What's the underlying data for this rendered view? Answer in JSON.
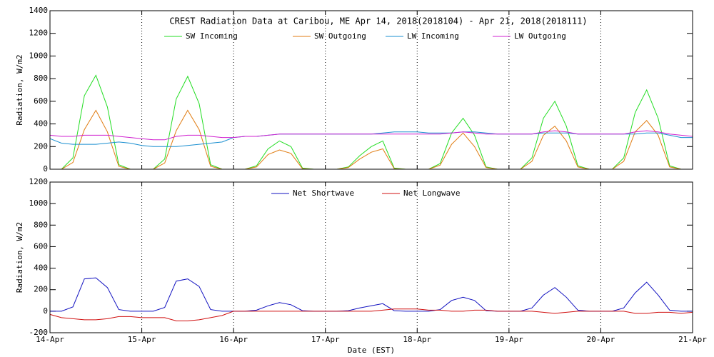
{
  "chart_data": [
    {
      "type": "line",
      "title": "CREST Radiation Data at Caribou, ME   Apr 14, 2018(2018104) - Apr 21, 2018(2018111)",
      "y_label": "Radiation, W/m2",
      "x": [
        0,
        0.125,
        0.25,
        0.375,
        0.5,
        0.625,
        0.75,
        0.875,
        1,
        1.125,
        1.25,
        1.375,
        1.5,
        1.625,
        1.75,
        1.875,
        2,
        2.125,
        2.25,
        2.375,
        2.5,
        2.625,
        2.75,
        2.875,
        3,
        3.125,
        3.25,
        3.375,
        3.5,
        3.625,
        3.75,
        3.875,
        4,
        4.125,
        4.25,
        4.375,
        4.5,
        4.625,
        4.75,
        4.875,
        5,
        5.125,
        5.25,
        5.375,
        5.5,
        5.625,
        5.75,
        5.875,
        6,
        6.125,
        6.25,
        6.375,
        6.5,
        6.625,
        6.75,
        6.875,
        7
      ],
      "xlim": [
        0,
        7
      ],
      "xticks": [
        0,
        1,
        2,
        3,
        4,
        5,
        6,
        7
      ],
      "ylim": [
        0,
        1400
      ],
      "yticks": [
        0,
        200,
        400,
        600,
        800,
        1000,
        1200,
        1400
      ],
      "grid": "x",
      "series": [
        {
          "name": "SW Incoming",
          "color": "#22dd22",
          "values": [
            0,
            0,
            100,
            650,
            830,
            550,
            40,
            0,
            0,
            0,
            90,
            620,
            820,
            580,
            40,
            0,
            0,
            0,
            30,
            180,
            250,
            200,
            10,
            0,
            0,
            0,
            20,
            120,
            200,
            250,
            10,
            0,
            0,
            0,
            50,
            320,
            450,
            300,
            20,
            0,
            0,
            0,
            100,
            450,
            600,
            380,
            30,
            0,
            0,
            0,
            100,
            500,
            700,
            450,
            30,
            0,
            0
          ]
        },
        {
          "name": "SW Outgoing",
          "color": "#e07b10",
          "values": [
            0,
            0,
            60,
            350,
            520,
            330,
            25,
            0,
            0,
            0,
            55,
            340,
            520,
            350,
            25,
            0,
            0,
            0,
            20,
            130,
            170,
            140,
            5,
            0,
            0,
            0,
            15,
            90,
            150,
            180,
            5,
            0,
            0,
            0,
            35,
            220,
            320,
            200,
            15,
            0,
            0,
            0,
            70,
            300,
            380,
            250,
            20,
            0,
            0,
            0,
            70,
            330,
            430,
            300,
            20,
            0,
            0
          ]
        },
        {
          "name": "LW Incoming",
          "color": "#1a8fd0",
          "values": [
            270,
            230,
            220,
            220,
            220,
            230,
            240,
            230,
            210,
            200,
            200,
            200,
            210,
            220,
            230,
            240,
            280,
            290,
            290,
            300,
            310,
            310,
            310,
            310,
            310,
            310,
            310,
            310,
            310,
            320,
            330,
            330,
            330,
            320,
            320,
            320,
            330,
            330,
            320,
            310,
            310,
            310,
            310,
            320,
            320,
            320,
            310,
            310,
            310,
            310,
            310,
            310,
            320,
            320,
            300,
            280,
            280
          ]
        },
        {
          "name": "LW Outgoing",
          "color": "#d020d0",
          "values": [
            300,
            290,
            290,
            300,
            300,
            300,
            290,
            280,
            270,
            260,
            260,
            290,
            300,
            300,
            290,
            280,
            280,
            290,
            290,
            300,
            310,
            310,
            310,
            310,
            310,
            310,
            310,
            310,
            310,
            310,
            310,
            310,
            310,
            310,
            310,
            320,
            330,
            320,
            310,
            310,
            310,
            310,
            310,
            330,
            340,
            330,
            310,
            310,
            310,
            310,
            310,
            330,
            340,
            330,
            310,
            300,
            290
          ]
        }
      ]
    },
    {
      "type": "line",
      "y_label": "Radiation, W/m2",
      "x_label": "Date (EST)",
      "x": [
        0,
        0.125,
        0.25,
        0.375,
        0.5,
        0.625,
        0.75,
        0.875,
        1,
        1.125,
        1.25,
        1.375,
        1.5,
        1.625,
        1.75,
        1.875,
        2,
        2.125,
        2.25,
        2.375,
        2.5,
        2.625,
        2.75,
        2.875,
        3,
        3.125,
        3.25,
        3.375,
        3.5,
        3.625,
        3.75,
        3.875,
        4,
        4.125,
        4.25,
        4.375,
        4.5,
        4.625,
        4.75,
        4.875,
        5,
        5.125,
        5.25,
        5.375,
        5.5,
        5.625,
        5.75,
        5.875,
        6,
        6.125,
        6.25,
        6.375,
        6.5,
        6.625,
        6.75,
        6.875,
        7
      ],
      "xlim": [
        0,
        7
      ],
      "xticks": [
        {
          "value": 0,
          "label": "14-Apr"
        },
        {
          "value": 1,
          "label": "15-Apr"
        },
        {
          "value": 2,
          "label": "16-Apr"
        },
        {
          "value": 3,
          "label": "17-Apr"
        },
        {
          "value": 4,
          "label": "18-Apr"
        },
        {
          "value": 5,
          "label": "19-Apr"
        },
        {
          "value": 6,
          "label": "20-Apr"
        },
        {
          "value": 7,
          "label": "21-Apr"
        }
      ],
      "ylim": [
        -200,
        1200
      ],
      "yticks": [
        -200,
        0,
        200,
        400,
        600,
        800,
        1000,
        1200
      ],
      "grid": "x",
      "series": [
        {
          "name": "Net Shortwave",
          "color": "#1010c0",
          "values": [
            0,
            0,
            40,
            300,
            310,
            220,
            15,
            0,
            0,
            0,
            35,
            280,
            300,
            230,
            15,
            0,
            0,
            0,
            10,
            50,
            80,
            60,
            5,
            0,
            0,
            0,
            5,
            30,
            50,
            70,
            5,
            0,
            0,
            0,
            15,
            100,
            130,
            100,
            5,
            0,
            0,
            0,
            30,
            150,
            220,
            130,
            10,
            0,
            0,
            0,
            30,
            170,
            270,
            150,
            10,
            0,
            0
          ]
        },
        {
          "name": "Net Longwave",
          "color": "#d01010",
          "values": [
            -30,
            -60,
            -70,
            -80,
            -80,
            -70,
            -50,
            -50,
            -60,
            -60,
            -60,
            -90,
            -90,
            -80,
            -60,
            -40,
            0,
            0,
            0,
            0,
            0,
            0,
            0,
            0,
            0,
            0,
            0,
            0,
            0,
            10,
            20,
            20,
            20,
            10,
            10,
            0,
            0,
            10,
            10,
            0,
            0,
            0,
            0,
            -10,
            -20,
            -10,
            0,
            0,
            0,
            0,
            0,
            -20,
            -20,
            -10,
            -10,
            -20,
            -10
          ]
        }
      ]
    }
  ]
}
